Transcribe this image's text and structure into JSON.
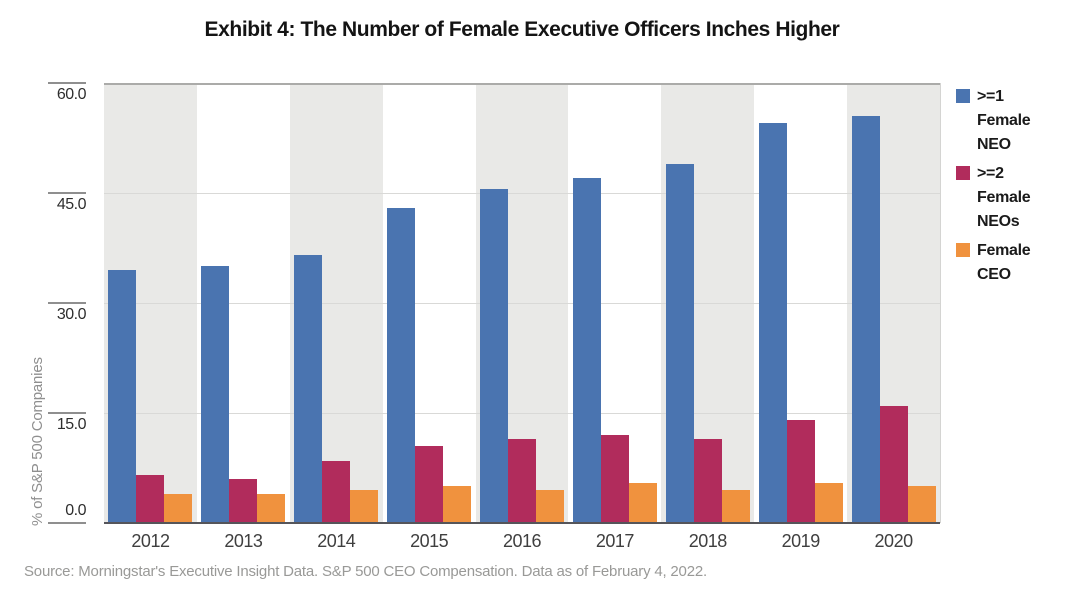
{
  "title": "Exhibit 4: The Number of Female Executive Officers Inches Higher",
  "source": "Source: Morningstar's Executive Insight Data. S&P 500 CEO Compensation. Data as of February 4, 2022.",
  "chart_data": {
    "type": "bar",
    "categories": [
      "2012",
      "2013",
      "2014",
      "2015",
      "2016",
      "2017",
      "2018",
      "2019",
      "2020"
    ],
    "series": [
      {
        "name": ">=1 Female NEO",
        "color": "#4A74B0",
        "values": [
          34.5,
          35.0,
          36.5,
          43.0,
          45.5,
          47.0,
          49.0,
          54.5,
          55.5
        ]
      },
      {
        "name": ">=2 Female NEOs",
        "color": "#B12C5C",
        "values": [
          6.5,
          6.0,
          8.5,
          10.5,
          11.5,
          12.0,
          11.5,
          14.0,
          16.0
        ]
      },
      {
        "name": "Female CEO",
        "color": "#F0923E",
        "values": [
          4.0,
          4.0,
          4.5,
          5.0,
          4.5,
          5.5,
          4.5,
          5.5,
          5.0
        ]
      }
    ],
    "xlabel": "",
    "ylabel": "% of S&P 500 Companies",
    "ylim": [
      0,
      60
    ],
    "yticks": [
      0,
      15,
      30,
      45,
      60
    ],
    "ytick_labels": [
      "0.0",
      "15.0",
      "30.0",
      "45.0",
      "60.0"
    ],
    "grid": "horizontal",
    "legend_position": "right",
    "column_stripes": "alternate shaded bands behind even-index year groups (2012, 2014, 2016, 2018, 2020)"
  },
  "colors": {
    "stripe": "#E9E9E7",
    "gridline": "#D9D9D7",
    "grid_top_line": "#ABABA9",
    "axis_baseline": "#55555A",
    "tick_mark": "#8F8F8F",
    "tick_text": "#2E2E2E",
    "year_text": "#3F3F3F",
    "gray_text": "#999997",
    "title_text": "#141414",
    "legend_text": "#1A1A1A",
    "plot_right_edge": "#D4D4D2"
  }
}
